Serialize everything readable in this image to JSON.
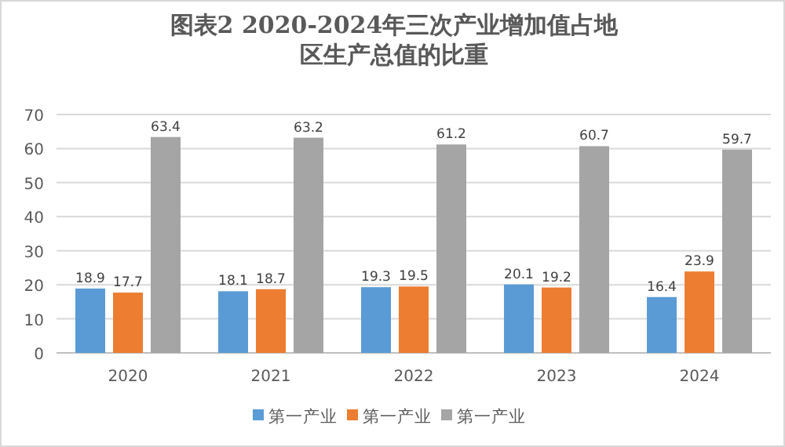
{
  "chart_data": {
    "type": "bar",
    "title": "图表2  2020-2024年三次产业增加值占地区生产总值的比重",
    "categories": [
      "2020",
      "2021",
      "2022",
      "2023",
      "2024"
    ],
    "series": [
      {
        "name": "第一产业",
        "color": "#5b9bd5",
        "values": [
          18.9,
          18.1,
          19.3,
          20.1,
          16.4
        ]
      },
      {
        "name": "第一产业",
        "color": "#ed7d31",
        "values": [
          17.7,
          18.7,
          19.5,
          19.2,
          23.9
        ]
      },
      {
        "name": "第一产业",
        "color": "#a5a5a5",
        "values": [
          63.4,
          63.2,
          61.2,
          60.7,
          59.7
        ]
      }
    ],
    "ylim": [
      0,
      70
    ],
    "yticks": [
      0,
      10,
      20,
      30,
      40,
      50,
      60,
      70
    ],
    "grid": "y",
    "legend": "bottom",
    "data_labels": true
  }
}
